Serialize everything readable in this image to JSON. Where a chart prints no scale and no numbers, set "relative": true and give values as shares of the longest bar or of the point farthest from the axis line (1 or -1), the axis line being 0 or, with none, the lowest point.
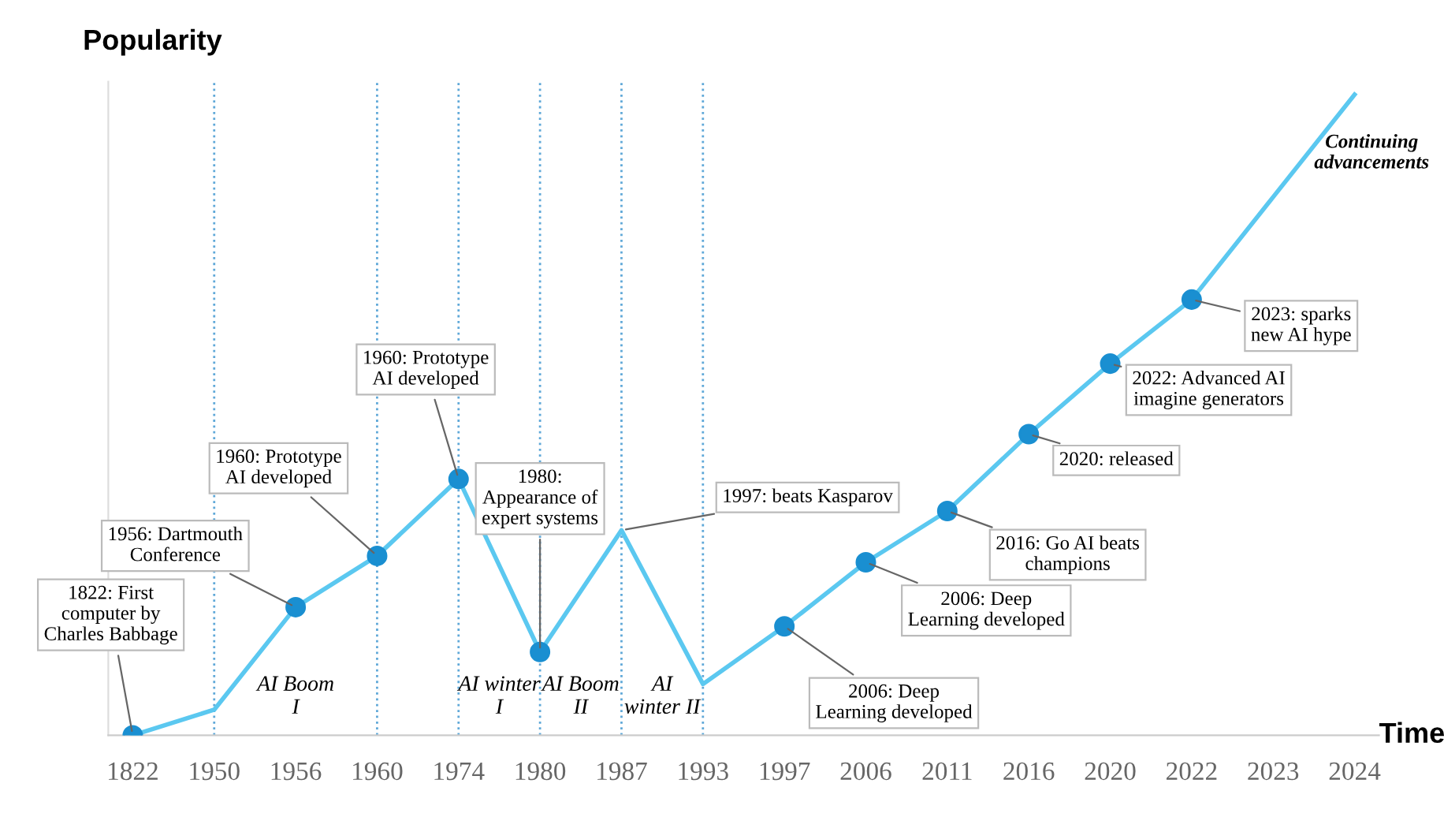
{
  "chart_data": {
    "type": "line",
    "relative": true,
    "xlabel": "Time",
    "ylabel": "Popularity",
    "categories": [
      "1822",
      "1950",
      "1956",
      "1960",
      "1974",
      "1980",
      "1987",
      "1993",
      "1997",
      "2006",
      "2011",
      "2016",
      "2020",
      "2022",
      "2023",
      "2024"
    ],
    "series": [
      {
        "color": "#5bc8f0",
        "values": [
          0,
          0.04,
          0.2,
          0.28,
          0.4,
          0.13,
          0.32,
          0.08,
          0.17,
          0.27,
          0.35,
          0.47,
          0.58,
          0.68,
          0.84,
          1.0
        ]
      },
      {
        "type": "scatter",
        "color": "#1a8fd1",
        "values": [
          0,
          null,
          0.2,
          0.28,
          0.4,
          0.13,
          null,
          null,
          0.17,
          0.27,
          0.35,
          0.47,
          0.58,
          0.68,
          null,
          null
        ]
      }
    ],
    "ref_lines": [
      {
        "axis": "x",
        "value": "1950",
        "color": "#5fa8d8",
        "line_style": "dotted"
      },
      {
        "axis": "x",
        "value": "1960",
        "color": "#5fa8d8",
        "line_style": "dotted"
      },
      {
        "axis": "x",
        "value": "1974",
        "color": "#5fa8d8",
        "line_style": "dotted"
      },
      {
        "axis": "x",
        "value": "1980",
        "color": "#5fa8d8",
        "line_style": "dotted"
      },
      {
        "axis": "x",
        "value": "1987",
        "color": "#5fa8d8",
        "line_style": "dotted"
      },
      {
        "axis": "x",
        "value": "1993",
        "color": "#5fa8d8",
        "line_style": "dotted"
      }
    ],
    "annotations": [
      {
        "text": "1822: First\ncomputer by\nCharles Babbage",
        "x": "1822",
        "y": 0
      },
      {
        "text": "1956: Dartmouth\nConference",
        "x": "1956",
        "y": 0.2
      },
      {
        "text": "1960: Prototype\nAI developed",
        "x": "1960",
        "y": 0.28
      },
      {
        "text": "1960: Prototype\nAI developed",
        "x": "1974",
        "y": 0.4
      },
      {
        "text": "1980:\nAppearance of\nexpert systems",
        "x": "1980",
        "y": 0.13
      },
      {
        "text": "1997: beats Kasparov",
        "x": "1987",
        "y": 0.32
      },
      {
        "text": "2006: Deep\nLearning developed",
        "x": "1997",
        "y": 0.17
      },
      {
        "text": "2006: Deep\nLearning developed",
        "x": "2006",
        "y": 0.27
      },
      {
        "text": "2016: Go AI beats\nchampions",
        "x": "2011",
        "y": 0.35
      },
      {
        "text": "2020: released",
        "x": "2016",
        "y": 0.47
      },
      {
        "text": "2022: Advanced AI\nimagine generators",
        "x": "2020",
        "y": 0.58
      },
      {
        "text": "2023: sparks\nnew AI hype",
        "x": "2022",
        "y": 0.68
      },
      {
        "text": "Continuing\nadvancements",
        "x": "2023",
        "y": 0.84
      },
      "AI Boom\nI",
      "AI winter\nI",
      "AI Boom\nII",
      "AI\nwinter II"
    ],
    "line_style": "solid",
    "legend": false,
    "tick_labels": "x"
  }
}
